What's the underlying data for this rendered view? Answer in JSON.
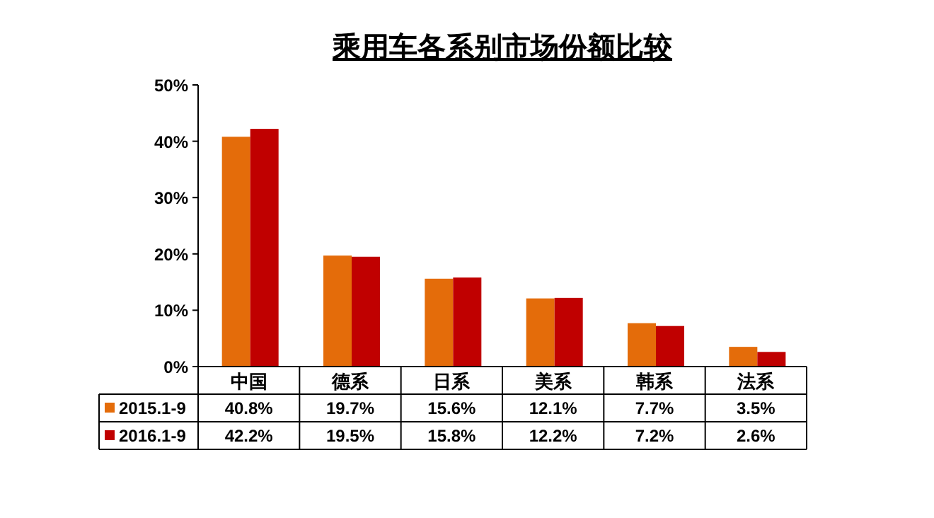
{
  "chart_data": {
    "type": "bar",
    "title": "乘用车各系别市场份额比较",
    "categories": [
      "中国",
      "德系",
      "日系",
      "美系",
      "韩系",
      "法系"
    ],
    "series": [
      {
        "name": "2015.1-9",
        "color": "#e46c0a",
        "values": [
          40.8,
          19.7,
          15.6,
          12.1,
          7.7,
          3.5
        ],
        "value_labels": [
          "40.8%",
          "19.7%",
          "15.6%",
          "12.1%",
          "7.7%",
          "3.5%"
        ]
      },
      {
        "name": "2016.1-9",
        "color": "#c00000",
        "values": [
          42.2,
          19.5,
          15.8,
          12.2,
          7.2,
          2.6
        ],
        "value_labels": [
          "42.2%",
          "19.5%",
          "15.8%",
          "12.2%",
          "7.2%",
          "2.6%"
        ]
      }
    ],
    "ylim": [
      0,
      50
    ],
    "yticks": [
      {
        "value": 0,
        "label": "0%"
      },
      {
        "value": 10,
        "label": "10%"
      },
      {
        "value": 20,
        "label": "20%"
      },
      {
        "value": 30,
        "label": "30%"
      },
      {
        "value": 40,
        "label": "40%"
      },
      {
        "value": 50,
        "label": "50%"
      }
    ],
    "legend": "bottom left"
  }
}
